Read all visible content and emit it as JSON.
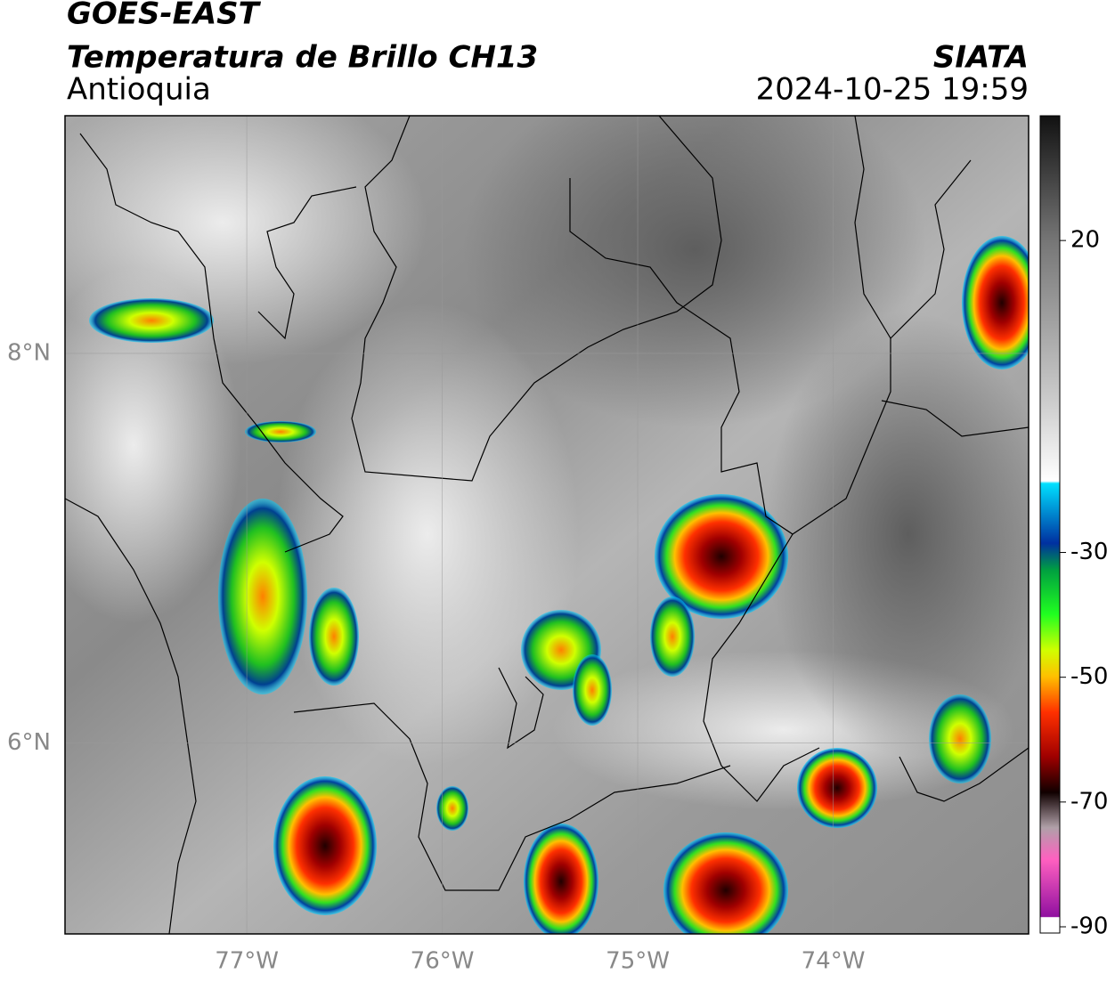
{
  "header": {
    "product": "GOES-EAST",
    "title": "Temperatura de Brillo CH13",
    "region": "Antioquia",
    "source": "SIATA",
    "datetime": "2024-10-25 19:59"
  },
  "map": {
    "lon_lim": [
      -77.93,
      -73.0
    ],
    "lat_lim": [
      5.02,
      9.22
    ],
    "lon_ticks": [
      {
        "value": -77,
        "label": "77°W"
      },
      {
        "value": -76,
        "label": "76°W"
      },
      {
        "value": -75,
        "label": "75°W"
      },
      {
        "value": -74,
        "label": "74°W"
      }
    ],
    "lat_ticks": [
      {
        "value": 8,
        "label": "8°N"
      },
      {
        "value": 6,
        "label": "6°N"
      }
    ]
  },
  "colorbar": {
    "lim": [
      -91,
      40
    ],
    "ticks": [
      20,
      -30,
      -50,
      -70,
      -90
    ]
  }
}
